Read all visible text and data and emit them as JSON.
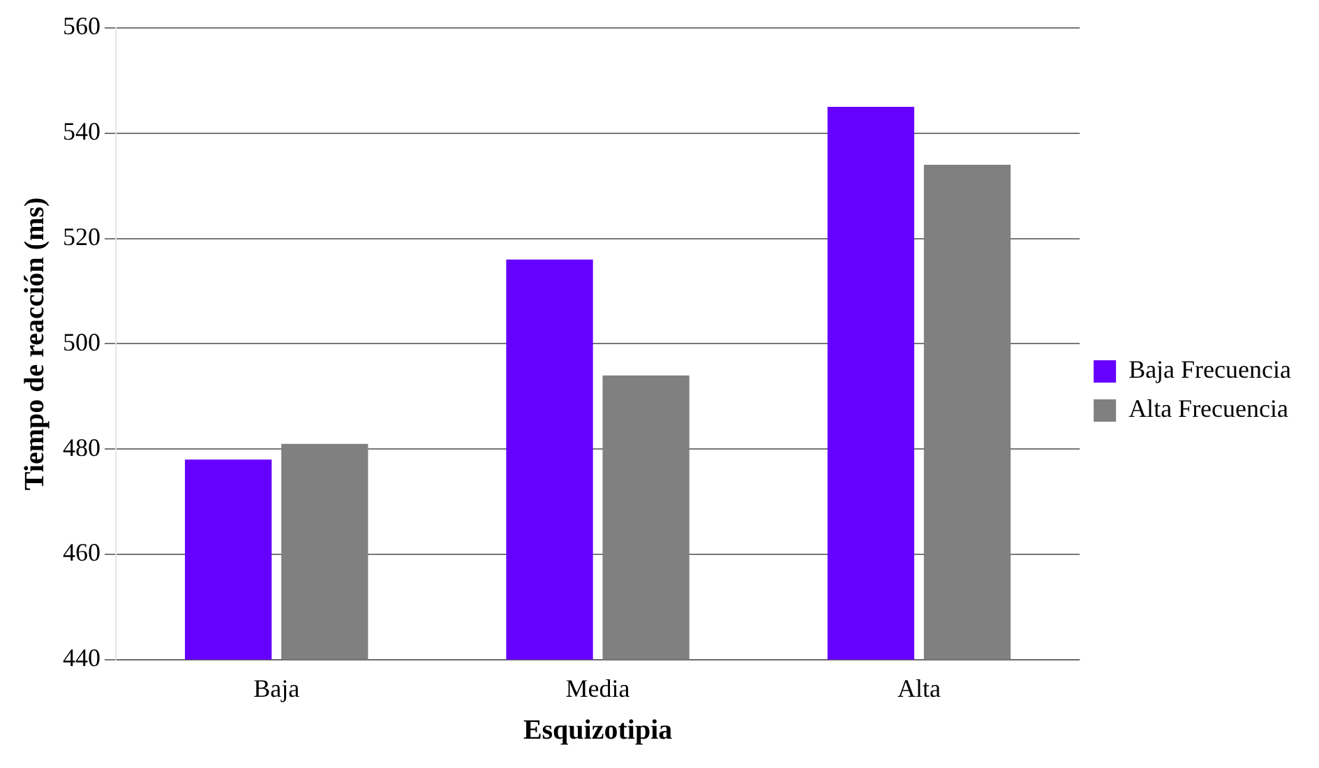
{
  "chart_data": {
    "type": "bar",
    "xlabel": "Esquizotipia",
    "ylabel": "Tiempo de reacción (ms)",
    "categories": [
      "Baja",
      "Media",
      "Alta"
    ],
    "series": [
      {
        "name": "Baja Frecuencia",
        "color": "#6600ff",
        "values": [
          478,
          516,
          545
        ]
      },
      {
        "name": "Alta Frecuencia",
        "color": "#808080",
        "values": [
          481,
          494,
          534
        ]
      }
    ],
    "ylim": [
      440,
      560
    ],
    "yticks": [
      440,
      460,
      480,
      500,
      520,
      540,
      560
    ],
    "grid": "y",
    "legend": "right"
  }
}
